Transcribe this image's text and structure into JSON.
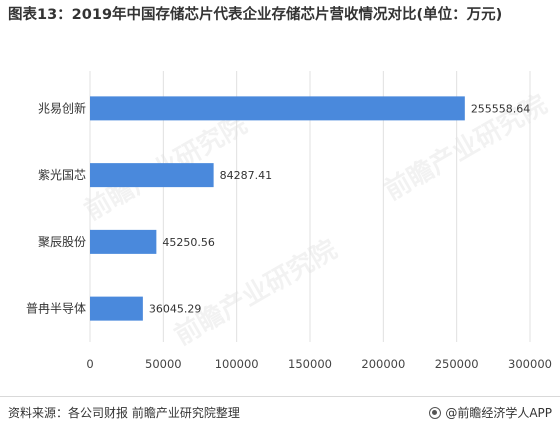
{
  "title": "图表13：2019年中国存储芯片代表企业存储芯片营收情况对比(单位：万元)",
  "source": "资料来源：各公司财报 前瞻产业研究院整理",
  "brand": "@前瞻经济学人APP",
  "watermark": "前瞻产业研究院",
  "colors": {
    "bar": "#4a89dc",
    "grid": "#e0e0e0"
  },
  "chart_data": {
    "type": "bar",
    "orientation": "horizontal",
    "title": "图表13：2019年中国存储芯片代表企业存储芯片营收情况对比(单位：万元)",
    "categories": [
      "兆易创新",
      "紫光国芯",
      "聚辰股份",
      "普冉半导体"
    ],
    "values": [
      255558.64,
      84287.41,
      45250.56,
      36045.29
    ],
    "value_labels": [
      "255558.64",
      "84287.41",
      "45250.56",
      "36045.29"
    ],
    "xlim": [
      0,
      300000
    ],
    "xticks": [
      "0",
      "50000",
      "100000",
      "150000",
      "200000",
      "250000",
      "300000"
    ],
    "xlabel": "",
    "ylabel": "",
    "grid": "vertical"
  }
}
